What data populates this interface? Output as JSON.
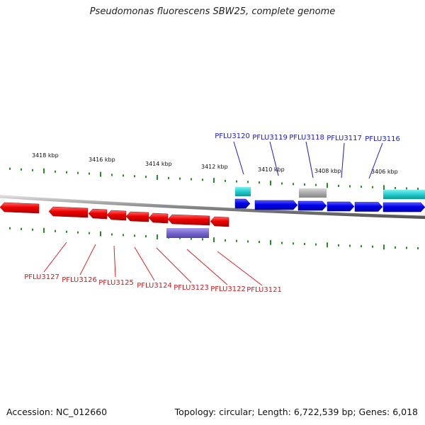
{
  "title": "Pseudomonas fluorescens SBW25, complete genome",
  "footer": {
    "accession": "Accession: NC_012660",
    "summary": "Topology: circular; Length: 6,722,539 bp; Genes: 6,018"
  },
  "colors": {
    "forward_gene": "#0000ee",
    "reverse_gene": "#ee0000",
    "forward_label": "#1a1acc",
    "reverse_label": "#cc1a1a",
    "tick": "#2a8a2a",
    "backbone": "#888888",
    "feature_cyan": "#22cccc",
    "feature_gray": "#aaaaaa",
    "feature_purple": "#7766cc"
  },
  "scale_labels": [
    "3418 kbp",
    "3416 kbp",
    "3414 kbp",
    "3412 kbp",
    "3410 kbp",
    "3408 kbp",
    "3406 kbp"
  ],
  "forward_genes": [
    "PFLU3120",
    "PFLU3119",
    "PFLU3118",
    "PFLU3117",
    "PFLU3116"
  ],
  "reverse_genes": [
    "PFLU3127",
    "PFLU3126",
    "PFLU3125",
    "PFLU3124",
    "PFLU3123",
    "PFLU3122",
    "PFLU3121"
  ]
}
